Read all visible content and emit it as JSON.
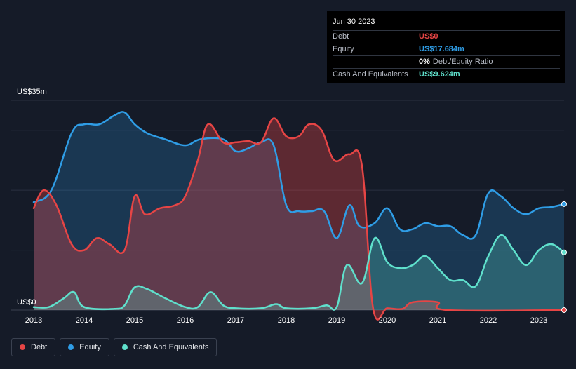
{
  "tooltip": {
    "date": "Jun 30 2023",
    "rows": [
      {
        "label": "Debt",
        "value": "US$0",
        "color": "#e64545"
      },
      {
        "label": "Equity",
        "value": "US$17.684m",
        "color": "#2f9de6"
      },
      {
        "label": "",
        "value": "0%",
        "extra": "Debt/Equity Ratio"
      },
      {
        "label": "Cash And Equivalents",
        "value": "US$9.624m",
        "color": "#5fe0cc"
      }
    ]
  },
  "legend": [
    {
      "name": "Debt",
      "color": "#e64545"
    },
    {
      "name": "Equity",
      "color": "#2f9de6"
    },
    {
      "name": "Cash And Equivalents",
      "color": "#5fe0cc"
    }
  ],
  "chart_data": {
    "type": "area",
    "title": "",
    "xlabel": "",
    "ylabel": "",
    "y_top_label": "US$35m",
    "y_bottom_label": "US$0",
    "ylim": [
      0,
      35
    ],
    "xlim": [
      2013.0,
      2023.5
    ],
    "x_ticks": [
      2013,
      2014,
      2015,
      2016,
      2017,
      2018,
      2019,
      2020,
      2021,
      2022,
      2023
    ],
    "gridlines": [
      0,
      10,
      20,
      30,
      35
    ],
    "series": [
      {
        "name": "Debt",
        "color": "#e64545",
        "points": [
          [
            2013.0,
            17.0
          ],
          [
            2013.2,
            20.0
          ],
          [
            2013.45,
            17.5
          ],
          [
            2013.75,
            11.0
          ],
          [
            2014.0,
            10.0
          ],
          [
            2014.25,
            12.0
          ],
          [
            2014.5,
            11.0
          ],
          [
            2014.8,
            10.0
          ],
          [
            2015.0,
            19.0
          ],
          [
            2015.2,
            16.0
          ],
          [
            2015.5,
            17.0
          ],
          [
            2015.8,
            17.5
          ],
          [
            2016.0,
            19.0
          ],
          [
            2016.25,
            25.0
          ],
          [
            2016.45,
            31.0
          ],
          [
            2016.75,
            28.0
          ],
          [
            2017.0,
            28.0
          ],
          [
            2017.25,
            28.2
          ],
          [
            2017.5,
            28.0
          ],
          [
            2017.75,
            32.0
          ],
          [
            2018.0,
            29.0
          ],
          [
            2018.25,
            29.0
          ],
          [
            2018.45,
            31.0
          ],
          [
            2018.7,
            30.0
          ],
          [
            2018.95,
            25.0
          ],
          [
            2019.25,
            26.0
          ],
          [
            2019.5,
            24.0
          ],
          [
            2019.72,
            0.3
          ],
          [
            2020.0,
            0.3
          ],
          [
            2020.3,
            0.2
          ],
          [
            2020.5,
            1.3
          ],
          [
            2021.0,
            1.3
          ],
          [
            2021.2,
            0
          ],
          [
            2023.5,
            0
          ]
        ]
      },
      {
        "name": "Equity",
        "color": "#2f9de6",
        "points": [
          [
            2013.0,
            18.0
          ],
          [
            2013.35,
            20.0
          ],
          [
            2013.75,
            29.5
          ],
          [
            2014.0,
            31.0
          ],
          [
            2014.3,
            31.0
          ],
          [
            2014.6,
            32.5
          ],
          [
            2014.8,
            33.0
          ],
          [
            2015.0,
            31.0
          ],
          [
            2015.25,
            29.5
          ],
          [
            2015.6,
            28.5
          ],
          [
            2016.0,
            27.5
          ],
          [
            2016.3,
            28.5
          ],
          [
            2016.75,
            28.5
          ],
          [
            2017.0,
            26.5
          ],
          [
            2017.25,
            27.0
          ],
          [
            2017.5,
            28.0
          ],
          [
            2017.75,
            27.5
          ],
          [
            2018.0,
            17.5
          ],
          [
            2018.25,
            16.5
          ],
          [
            2018.5,
            16.5
          ],
          [
            2018.75,
            16.5
          ],
          [
            2019.0,
            12.0
          ],
          [
            2019.25,
            17.5
          ],
          [
            2019.45,
            14.0
          ],
          [
            2019.75,
            14.5
          ],
          [
            2020.0,
            17.0
          ],
          [
            2020.25,
            13.5
          ],
          [
            2020.5,
            13.5
          ],
          [
            2020.75,
            14.5
          ],
          [
            2021.0,
            14.0
          ],
          [
            2021.25,
            14.0
          ],
          [
            2021.5,
            12.5
          ],
          [
            2021.75,
            12.5
          ],
          [
            2022.0,
            19.5
          ],
          [
            2022.25,
            19.0
          ],
          [
            2022.5,
            17.0
          ],
          [
            2022.75,
            16.0
          ],
          [
            2023.0,
            17.0
          ],
          [
            2023.25,
            17.2
          ],
          [
            2023.5,
            17.684
          ]
        ]
      },
      {
        "name": "Cash And Equivalents",
        "color": "#5fe0cc",
        "points": [
          [
            2013.0,
            0.5
          ],
          [
            2013.3,
            0.5
          ],
          [
            2013.6,
            2.0
          ],
          [
            2013.8,
            3.0
          ],
          [
            2014.0,
            0.5
          ],
          [
            2014.6,
            0.2
          ],
          [
            2014.8,
            0.8
          ],
          [
            2015.0,
            3.8
          ],
          [
            2015.25,
            3.5
          ],
          [
            2015.6,
            2.0
          ],
          [
            2016.0,
            0.5
          ],
          [
            2016.25,
            0.5
          ],
          [
            2016.5,
            3.0
          ],
          [
            2016.75,
            0.8
          ],
          [
            2017.0,
            0.3
          ],
          [
            2017.5,
            0.3
          ],
          [
            2017.8,
            1.0
          ],
          [
            2018.0,
            0.3
          ],
          [
            2018.5,
            0.3
          ],
          [
            2018.8,
            0.8
          ],
          [
            2019.0,
            0.5
          ],
          [
            2019.2,
            7.5
          ],
          [
            2019.5,
            4.5
          ],
          [
            2019.75,
            12.0
          ],
          [
            2020.0,
            8.0
          ],
          [
            2020.25,
            7.0
          ],
          [
            2020.5,
            7.5
          ],
          [
            2020.75,
            9.0
          ],
          [
            2021.0,
            7.0
          ],
          [
            2021.25,
            5.0
          ],
          [
            2021.5,
            5.0
          ],
          [
            2021.75,
            4.0
          ],
          [
            2022.0,
            9.0
          ],
          [
            2022.25,
            12.5
          ],
          [
            2022.5,
            10.0
          ],
          [
            2022.75,
            7.5
          ],
          [
            2023.0,
            10.0
          ],
          [
            2023.25,
            11.0
          ],
          [
            2023.5,
            9.624
          ]
        ]
      }
    ]
  }
}
